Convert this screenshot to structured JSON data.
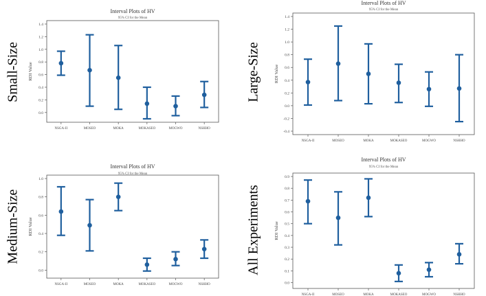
{
  "chart_data": [
    {
      "type": "interval",
      "side_label": "Small-Size",
      "title": "Interval Plots of HV",
      "subtitle": "95% CI for the Mean",
      "ylabel": "RDI Value",
      "xlabel": "",
      "ylim": [
        -0.1,
        1.4
      ],
      "yticks": [
        0.0,
        0.2,
        0.4,
        0.6,
        0.8,
        1.0,
        1.2,
        1.4
      ],
      "ytick_labels": [
        "0.0",
        "0.2",
        "0.4",
        "0.6",
        "0.8",
        "1.0",
        "1.2",
        "1.4"
      ],
      "categories": [
        "NSGA-II",
        "MOSEO",
        "MOKA",
        "MOKASEO",
        "MOGWO",
        "NSHHO"
      ],
      "means": [
        0.78,
        0.67,
        0.55,
        0.14,
        0.1,
        0.28
      ],
      "lower": [
        0.59,
        0.1,
        0.05,
        -0.1,
        -0.05,
        0.08
      ],
      "upper": [
        0.97,
        1.23,
        1.06,
        0.4,
        0.26,
        0.49
      ]
    },
    {
      "type": "interval",
      "side_label": "Large-Size",
      "title": "Interval Plots of HV",
      "subtitle": "95% CI for the Mean",
      "ylabel": "RDI Value",
      "xlabel": "",
      "ylim": [
        -0.4,
        1.4
      ],
      "yticks": [
        -0.4,
        -0.2,
        0.0,
        0.2,
        0.4,
        0.6,
        0.8,
        1.0,
        1.2,
        1.4
      ],
      "ytick_labels": [
        "-0.4",
        "-0.2",
        "0.0",
        "0.2",
        "0.4",
        "0.6",
        "0.8",
        "1.0",
        "1.2",
        "1.4"
      ],
      "categories": [
        "NSGA-II",
        "MOSEO",
        "MOKA",
        "MOKASEO",
        "MOGWO",
        "NSHHO"
      ],
      "means": [
        0.37,
        0.66,
        0.5,
        0.36,
        0.26,
        0.27
      ],
      "lower": [
        0.01,
        0.08,
        0.03,
        0.05,
        -0.01,
        -0.25
      ],
      "upper": [
        0.73,
        1.25,
        0.97,
        0.65,
        0.53,
        0.8
      ]
    },
    {
      "type": "interval",
      "side_label": "Medium-Size",
      "title": "Interval Plots of HV",
      "subtitle": "95% CI for the Mean",
      "ylabel": "RDI Value",
      "xlabel": "",
      "ylim": [
        -0.05,
        1.0
      ],
      "yticks": [
        0.0,
        0.2,
        0.4,
        0.6,
        0.8,
        1.0
      ],
      "ytick_labels": [
        "0.0",
        "0.2",
        "0.4",
        "0.6",
        "0.8",
        "1.0"
      ],
      "categories": [
        "NSGA-II",
        "MOSEO",
        "MOKA",
        "MOKASEO",
        "MOGWO",
        "NSHHO"
      ],
      "means": [
        0.64,
        0.49,
        0.8,
        0.06,
        0.12,
        0.23
      ],
      "lower": [
        0.38,
        0.21,
        0.65,
        -0.01,
        0.05,
        0.13
      ],
      "upper": [
        0.91,
        0.77,
        0.95,
        0.13,
        0.2,
        0.33
      ]
    },
    {
      "type": "interval",
      "side_label": "All Experiments",
      "title": "Interval Plots of HV",
      "subtitle": "95% CI for the Mean",
      "ylabel": "RDI Value",
      "xlabel": "",
      "ylim": [
        -0.02,
        0.9
      ],
      "yticks": [
        0.0,
        0.1,
        0.2,
        0.3,
        0.4,
        0.5,
        0.6,
        0.7,
        0.8,
        0.9
      ],
      "ytick_labels": [
        "0.0",
        "0.1",
        "0.2",
        "0.3",
        "0.4",
        "0.5",
        "0.6",
        "0.7",
        "0.8",
        "0.9"
      ],
      "categories": [
        "NSGA-II",
        "MOSEO",
        "MOKA",
        "MOKASEO",
        "MOGWO",
        "NSHHO"
      ],
      "means": [
        0.69,
        0.55,
        0.72,
        0.08,
        0.11,
        0.24
      ],
      "lower": [
        0.5,
        0.32,
        0.56,
        0.01,
        0.05,
        0.16
      ],
      "upper": [
        0.87,
        0.77,
        0.88,
        0.15,
        0.17,
        0.33
      ]
    }
  ],
  "colors": {
    "interval": "#1f5f9e",
    "frame": "#555555"
  }
}
